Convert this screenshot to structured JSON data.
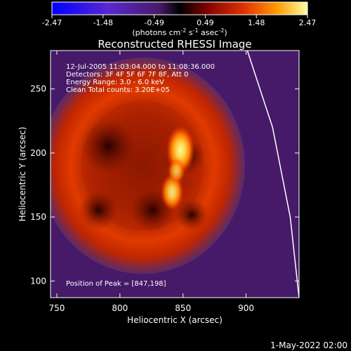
{
  "chart_data": {
    "type": "heatmap",
    "title": "Reconstructed RHESSI Image",
    "xlabel": "Heliocentric X (arcsec)",
    "ylabel": "Heliocentric Y (arcsec)",
    "xlim": [
      745,
      942
    ],
    "ylim": [
      87,
      280
    ],
    "xticks": [
      750,
      800,
      850,
      900
    ],
    "yticks": [
      100,
      150,
      200,
      250
    ],
    "colorbar": {
      "ticks": [
        "-2.47",
        "-1.48",
        "-0.49",
        "0.49",
        "1.48",
        "2.47"
      ],
      "label_main": "(photons cm",
      "label_exp1": "-2",
      "label_mid": " s",
      "label_exp2": "-1",
      "label_mid2": " asec",
      "label_exp3": "-2",
      "label_end": ")",
      "range": [
        -2.47,
        2.47
      ]
    },
    "annotations": [
      "12-Jul-2005 11:03:04.000 to 11:08:36.000",
      "Detectors: 3F 4F 5F 6F 7F 8F, Att 0",
      "Energy Range: 3.0 - 6.0 keV",
      "Clean    Total counts: 3.20E+05"
    ],
    "peak_label": "Position of Peak = [847,198]",
    "peak": [
      847,
      198
    ],
    "ring_center": [
      818,
      190
    ],
    "ring_radius": 78,
    "limb_points": [
      [
        901,
        280
      ],
      [
        921,
        220
      ],
      [
        935,
        150
      ],
      [
        942,
        87
      ]
    ]
  },
  "footer": {
    "date": "1-May-2022 02:00"
  },
  "colors": {
    "background": "#000000",
    "text": "#ffffff",
    "limb": "#ffffff"
  }
}
